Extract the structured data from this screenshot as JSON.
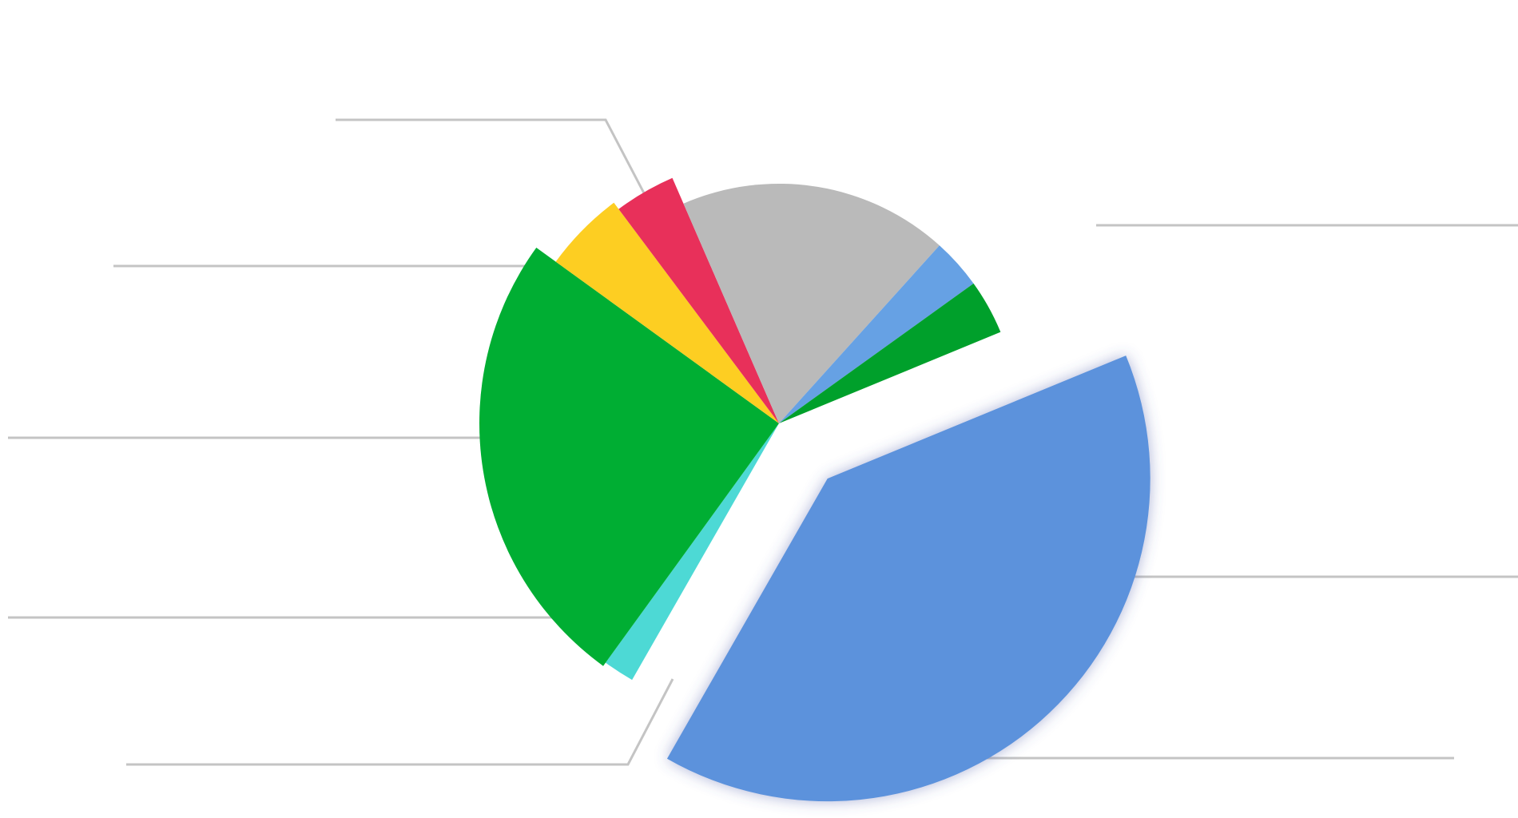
{
  "chart_data": {
    "type": "pie",
    "title": "",
    "exploded_slice": 0,
    "legend": "none",
    "slices": [
      {
        "name": "",
        "value": 39.5,
        "color": "#5b92dc"
      },
      {
        "name": "",
        "value": 1.7,
        "color": "#4dd9d5"
      },
      {
        "name": "",
        "value": 25.0,
        "color": "#00ae33"
      },
      {
        "name": "",
        "value": 4.8,
        "color": "#fdce22"
      },
      {
        "name": "",
        "value": 3.7,
        "color": "#e8305a"
      },
      {
        "name": "",
        "value": 18.2,
        "color": "#bababa"
      },
      {
        "name": "",
        "value": 3.4,
        "color": "#66a1e4"
      },
      {
        "name": "",
        "value": 3.7,
        "color": "#00a02b"
      }
    ]
  }
}
